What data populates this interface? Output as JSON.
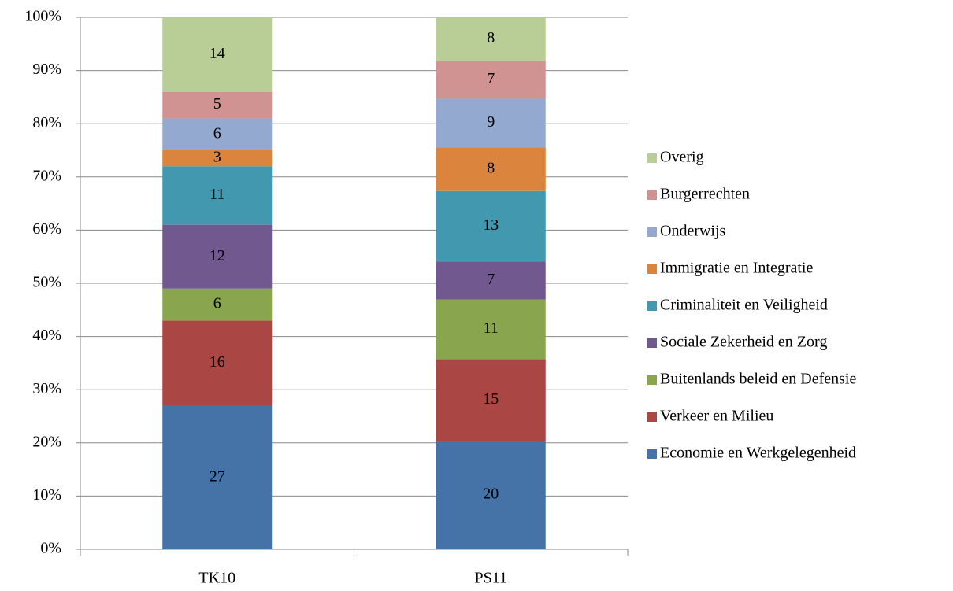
{
  "chart_data": {
    "type": "bar",
    "stacking": "percent",
    "categories": [
      "TK10",
      "PS11"
    ],
    "series": [
      {
        "name": "Economie en Werkgelegenheid",
        "color": "#4572a7",
        "values": [
          27,
          20
        ]
      },
      {
        "name": "Verkeer en Milieu",
        "color": "#aa4643",
        "values": [
          16,
          15
        ]
      },
      {
        "name": "Buitenlands beleid en Defensie",
        "color": "#89a54e",
        "values": [
          6,
          11
        ]
      },
      {
        "name": "Sociale Zekerheid en Zorg",
        "color": "#71588f",
        "values": [
          12,
          7
        ]
      },
      {
        "name": "Criminaliteit en Veiligheid",
        "color": "#4198af",
        "values": [
          11,
          13
        ]
      },
      {
        "name": "Immigratie en Integratie",
        "color": "#db843d",
        "values": [
          3,
          8
        ]
      },
      {
        "name": "Onderwijs",
        "color": "#93a9cf",
        "values": [
          6,
          9
        ]
      },
      {
        "name": "Burgerrechten",
        "color": "#d19392",
        "values": [
          5,
          7
        ]
      },
      {
        "name": "Overig",
        "color": "#b9cd96",
        "values": [
          14,
          8
        ]
      }
    ],
    "ylim": [
      0,
      100
    ],
    "yticks": [
      {
        "value": 0,
        "label": "0%"
      },
      {
        "value": 10,
        "label": "10%"
      },
      {
        "value": 20,
        "label": "20%"
      },
      {
        "value": 30,
        "label": "30%"
      },
      {
        "value": 40,
        "label": "40%"
      },
      {
        "value": 50,
        "label": "50%"
      },
      {
        "value": 60,
        "label": "60%"
      },
      {
        "value": 70,
        "label": "70%"
      },
      {
        "value": 80,
        "label": "80%"
      },
      {
        "value": 90,
        "label": "90%"
      },
      {
        "value": 100,
        "label": "100%"
      }
    ],
    "grid": true,
    "legend": "right"
  }
}
